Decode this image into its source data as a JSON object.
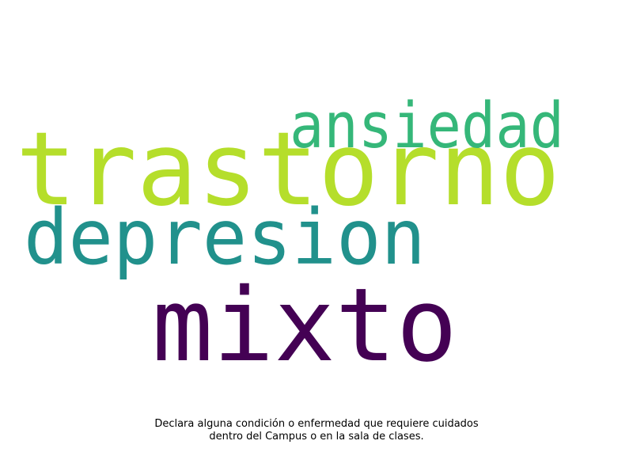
{
  "chart_data": {
    "type": "wordcloud",
    "words": [
      {
        "text": "trastorno",
        "weight": 1.0,
        "color": "#b5de2b"
      },
      {
        "text": "mixto",
        "weight": 1.0,
        "color": "#440154"
      },
      {
        "text": "depresion",
        "weight": 0.75,
        "color": "#21918c"
      },
      {
        "text": "ansiedad",
        "weight": 0.62,
        "color": "#35b779"
      }
    ],
    "caption_lines": [
      "Declara alguna condición o enfermedad que requiere cuidados",
      "dentro del Campus o en la sala de clases."
    ],
    "background": "#ffffff"
  }
}
